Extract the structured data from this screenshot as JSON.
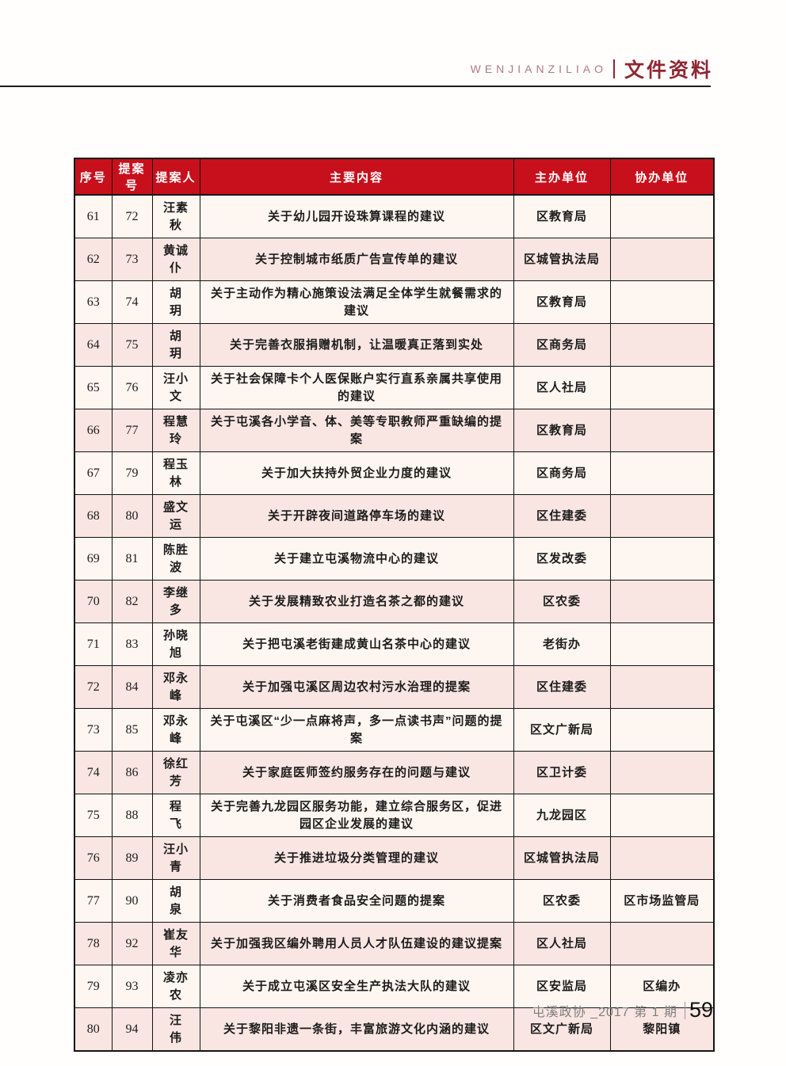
{
  "header": {
    "eyebrow": "WENJIANZILIAO",
    "title": "文件资料"
  },
  "footer": {
    "journal": "屯溪政协 _2017 第 1 期",
    "page_number": "59"
  },
  "table": {
    "columns": [
      "序号",
      "提案号",
      "提案人",
      "主要内容",
      "主办单位",
      "协办单位"
    ],
    "rows": [
      [
        "61",
        "72",
        "汪素秋",
        "关于幼儿园开设珠算课程的建议",
        "区教育局",
        ""
      ],
      [
        "62",
        "73",
        "黄诚仆",
        "关于控制城市纸质广告宣传单的建议",
        "区城管执法局",
        ""
      ],
      [
        "63",
        "74",
        "胡　玥",
        "关于主动作为精心施策设法满足全体学生就餐需求的建议",
        "区教育局",
        ""
      ],
      [
        "64",
        "75",
        "胡　玥",
        "关于完善衣服捐赠机制，让温暖真正落到实处",
        "区商务局",
        ""
      ],
      [
        "65",
        "76",
        "汪小文",
        "关于社会保障卡个人医保账户实行直系亲属共享使用的建议",
        "区人社局",
        ""
      ],
      [
        "66",
        "77",
        "程慧玲",
        "关于屯溪各小学音、体、美等专职教师严重缺编的提案",
        "区教育局",
        ""
      ],
      [
        "67",
        "79",
        "程玉林",
        "关于加大扶持外贸企业力度的建议",
        "区商务局",
        ""
      ],
      [
        "68",
        "80",
        "盛文运",
        "关于开辟夜间道路停车场的建议",
        "区住建委",
        ""
      ],
      [
        "69",
        "81",
        "陈胜波",
        "关于建立屯溪物流中心的建议",
        "区发改委",
        ""
      ],
      [
        "70",
        "82",
        "李继多",
        "关于发展精致农业打造名茶之都的建议",
        "区农委",
        ""
      ],
      [
        "71",
        "83",
        "孙晓旭",
        "关于把屯溪老街建成黄山名茶中心的建议",
        "老街办",
        ""
      ],
      [
        "72",
        "84",
        "邓永峰",
        "关于加强屯溪区周边农村污水治理的提案",
        "区住建委",
        ""
      ],
      [
        "73",
        "85",
        "邓永峰",
        "关于屯溪区“少一点麻将声，多一点读书声”问题的提案",
        "区文广新局",
        ""
      ],
      [
        "74",
        "86",
        "徐红芳",
        "关于家庭医师签约服务存在的问题与建议",
        "区卫计委",
        ""
      ],
      [
        "75",
        "88",
        "程　飞",
        "关于完善九龙园区服务功能，建立综合服务区，促进园区企业发展的建议",
        "九龙园区",
        ""
      ],
      [
        "76",
        "89",
        "汪小青",
        "关于推进垃圾分类管理的建议",
        "区城管执法局",
        ""
      ],
      [
        "77",
        "90",
        "胡　泉",
        "关于消费者食品安全问题的提案",
        "区农委",
        "区市场监管局"
      ],
      [
        "78",
        "92",
        "崔友华",
        "关于加强我区编外聘用人员人才队伍建设的建议提案",
        "区人社局",
        ""
      ],
      [
        "79",
        "93",
        "凌亦农",
        "关于成立屯溪区安全生产执法大队的建议",
        "区安监局",
        "区编办"
      ],
      [
        "80",
        "94",
        "汪　伟",
        "关于黎阳非遗一条街，丰富旅游文化内涵的建议",
        "区文广新局",
        "黎阳镇"
      ]
    ]
  },
  "colors": {
    "table_header_bg": "#c8101c",
    "table_header_text": "#ffffff",
    "row_light_bg": "#fdf6f1",
    "row_pink_bg": "#f9e6e2",
    "border": "#141414",
    "page_title_red": "#8e2733",
    "eyebrow_rose": "#ad7b80",
    "footer_gray": "#7e7e7e"
  }
}
